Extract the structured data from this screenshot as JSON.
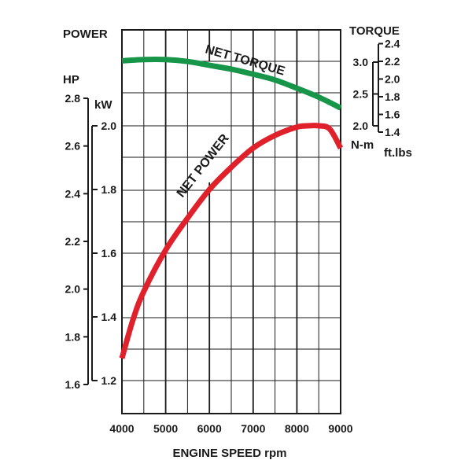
{
  "chart_data": {
    "type": "line",
    "title": "",
    "xlabel": "ENGINE SPEED rpm",
    "xlim": [
      4000,
      9000
    ],
    "x_ticks": [
      4000,
      5000,
      6000,
      7000,
      8000,
      9000
    ],
    "grid": true,
    "axes": {
      "power_title": "POWER",
      "hp_label": "HP",
      "kw_label": "kW",
      "torque_title": "TORQUE",
      "nm_label": "N-m",
      "ftlbs_label": "ft.lbs"
    },
    "hp_ticks": [
      "1.6",
      "1.8",
      "2.0",
      "2.2",
      "2.4",
      "2.6",
      "2.8"
    ],
    "kw_ticks": [
      "1.2",
      "1.4",
      "1.6",
      "1.8",
      "2.0"
    ],
    "nm_ticks": [
      "2.0",
      "2.5",
      "3.0"
    ],
    "ftlbs_ticks": [
      "1.4",
      "1.6",
      "1.8",
      "2.0",
      "2.2",
      "2.4"
    ],
    "series": [
      {
        "name": "NET POWER",
        "unit": "kW",
        "color": "#e0202a",
        "x": [
          4000,
          4250,
          4500,
          5000,
          5500,
          6000,
          6500,
          7000,
          7500,
          8000,
          8250,
          8500,
          8750,
          9000
        ],
        "values": [
          1.27,
          1.39,
          1.48,
          1.61,
          1.71,
          1.8,
          1.87,
          1.93,
          1.97,
          1.996,
          2.0,
          2.0,
          1.99,
          1.93
        ]
      },
      {
        "name": "NET TORQUE",
        "unit": "N-m",
        "color": "#17964a",
        "x": [
          4000,
          4500,
          5000,
          5500,
          6000,
          6500,
          7000,
          7500,
          8000,
          8500,
          9000
        ],
        "values": [
          3.02,
          3.04,
          3.04,
          3.01,
          2.95,
          2.89,
          2.81,
          2.72,
          2.59,
          2.45,
          2.28
        ]
      }
    ]
  }
}
